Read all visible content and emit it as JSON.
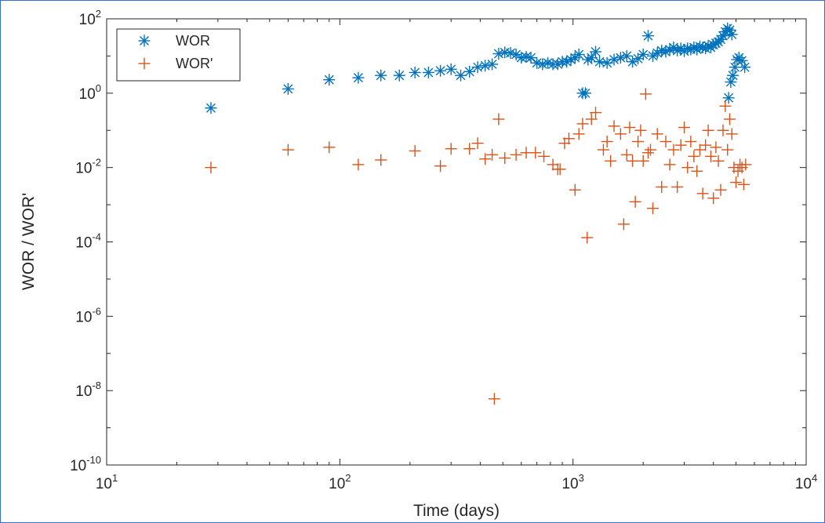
{
  "chart_data": {
    "type": "scatter",
    "title": "",
    "xlabel": "Time (days)",
    "ylabel": "WOR / WOR'",
    "xscale": "log",
    "yscale": "log",
    "xlim": [
      10,
      10000
    ],
    "ylim": [
      1e-10,
      100
    ],
    "x_ticks": [
      {
        "value": 10,
        "base": "10",
        "exp": "1"
      },
      {
        "value": 100,
        "base": "10",
        "exp": "2"
      },
      {
        "value": 1000,
        "base": "10",
        "exp": "3"
      },
      {
        "value": 10000,
        "base": "10",
        "exp": "4"
      }
    ],
    "y_ticks": [
      {
        "value": 1e-10,
        "base": "10",
        "exp": "-10"
      },
      {
        "value": 1e-08,
        "base": "10",
        "exp": "-8"
      },
      {
        "value": 1e-06,
        "base": "10",
        "exp": "-6"
      },
      {
        "value": 0.0001,
        "base": "10",
        "exp": "-4"
      },
      {
        "value": 0.01,
        "base": "10",
        "exp": "-2"
      },
      {
        "value": 1,
        "base": "10",
        "exp": "0"
      },
      {
        "value": 100,
        "base": "10",
        "exp": "2"
      }
    ],
    "grid": false,
    "legend_position": "top-left",
    "series": [
      {
        "name": "WOR",
        "marker": "asterisk",
        "color": "#0072BD",
        "points": [
          [
            28,
            0.4
          ],
          [
            60,
            1.3
          ],
          [
            90,
            2.3
          ],
          [
            120,
            2.6
          ],
          [
            150,
            3.0
          ],
          [
            180,
            3.0
          ],
          [
            210,
            3.6
          ],
          [
            240,
            3.6
          ],
          [
            270,
            4.0
          ],
          [
            300,
            4.4
          ],
          [
            330,
            3.0
          ],
          [
            360,
            3.8
          ],
          [
            390,
            5.0
          ],
          [
            420,
            5.5
          ],
          [
            450,
            6.0
          ],
          [
            480,
            11.5
          ],
          [
            510,
            12.5
          ],
          [
            540,
            12.0
          ],
          [
            570,
            11.0
          ],
          [
            600,
            9.0
          ],
          [
            630,
            9.5
          ],
          [
            660,
            9.0
          ],
          [
            700,
            6.5
          ],
          [
            740,
            6.0
          ],
          [
            780,
            6.5
          ],
          [
            820,
            6.0
          ],
          [
            860,
            6.0
          ],
          [
            900,
            7.0
          ],
          [
            940,
            7.0
          ],
          [
            980,
            8.0
          ],
          [
            1020,
            9.0
          ],
          [
            1060,
            11.0
          ],
          [
            1100,
            1.0
          ],
          [
            1130,
            1.0
          ],
          [
            1160,
            8.0
          ],
          [
            1200,
            9.0
          ],
          [
            1250,
            13.0
          ],
          [
            1300,
            7.0
          ],
          [
            1400,
            6.5
          ],
          [
            1500,
            8.0
          ],
          [
            1600,
            9.0
          ],
          [
            1700,
            10.0
          ],
          [
            1800,
            7.0
          ],
          [
            1900,
            8.5
          ],
          [
            2000,
            11.0
          ],
          [
            2100,
            35.0
          ],
          [
            2200,
            10.0
          ],
          [
            2300,
            12.0
          ],
          [
            2400,
            14.0
          ],
          [
            2500,
            13.0
          ],
          [
            2600,
            15.0
          ],
          [
            2700,
            17.0
          ],
          [
            2800,
            14.0
          ],
          [
            2900,
            16.0
          ],
          [
            3000,
            13.5
          ],
          [
            3100,
            16.0
          ],
          [
            3200,
            15.0
          ],
          [
            3300,
            17.0
          ],
          [
            3400,
            15.0
          ],
          [
            3500,
            18.0
          ],
          [
            3600,
            17.0
          ],
          [
            3700,
            16.0
          ],
          [
            3800,
            19.0
          ],
          [
            3900,
            17.0
          ],
          [
            4000,
            20.0
          ],
          [
            4100,
            22.0
          ],
          [
            4200,
            24.0
          ],
          [
            4300,
            28.0
          ],
          [
            4400,
            35.0
          ],
          [
            4500,
            45.0
          ],
          [
            4600,
            55.0
          ],
          [
            4700,
            50.0
          ],
          [
            4800,
            38.0
          ],
          [
            4650,
            0.75
          ],
          [
            4750,
            2.0
          ],
          [
            4850,
            3.0
          ],
          [
            4950,
            5.0
          ],
          [
            5050,
            8.0
          ],
          [
            5150,
            9.0
          ],
          [
            5300,
            7.5
          ],
          [
            5450,
            5.0
          ]
        ]
      },
      {
        "name": "WOR'",
        "marker": "plus",
        "color": "#D95319",
        "points": [
          [
            28,
            0.01
          ],
          [
            60,
            0.03
          ],
          [
            90,
            0.035
          ],
          [
            120,
            0.012
          ],
          [
            150,
            0.016
          ],
          [
            210,
            0.028
          ],
          [
            270,
            0.011
          ],
          [
            300,
            0.032
          ],
          [
            360,
            0.032
          ],
          [
            390,
            0.045
          ],
          [
            420,
            0.017
          ],
          [
            450,
            0.022
          ],
          [
            460,
            6e-09
          ],
          [
            480,
            0.2
          ],
          [
            510,
            0.018
          ],
          [
            570,
            0.022
          ],
          [
            630,
            0.025
          ],
          [
            690,
            0.025
          ],
          [
            750,
            0.02
          ],
          [
            820,
            0.012
          ],
          [
            860,
            0.009
          ],
          [
            880,
            0.009
          ],
          [
            920,
            0.045
          ],
          [
            960,
            0.06
          ],
          [
            1020,
            0.0025
          ],
          [
            1060,
            0.08
          ],
          [
            1100,
            0.15
          ],
          [
            1150,
            0.00013
          ],
          [
            1200,
            0.2
          ],
          [
            1250,
            0.3
          ],
          [
            1350,
            0.03
          ],
          [
            1400,
            0.05
          ],
          [
            1450,
            0.015
          ],
          [
            1500,
            0.13
          ],
          [
            1600,
            0.08
          ],
          [
            1650,
            0.0003
          ],
          [
            1700,
            0.022
          ],
          [
            1750,
            0.12
          ],
          [
            1800,
            0.015
          ],
          [
            1850,
            0.0012
          ],
          [
            1900,
            0.05
          ],
          [
            1950,
            0.1
          ],
          [
            2000,
            0.015
          ],
          [
            2050,
            0.95
          ],
          [
            2100,
            0.025
          ],
          [
            2150,
            0.03
          ],
          [
            2200,
            0.0008
          ],
          [
            2300,
            0.08
          ],
          [
            2400,
            0.003
          ],
          [
            2500,
            0.05
          ],
          [
            2600,
            0.012
          ],
          [
            2700,
            0.03
          ],
          [
            2800,
            0.003
          ],
          [
            2900,
            0.04
          ],
          [
            3000,
            0.12
          ],
          [
            3100,
            0.01
          ],
          [
            3200,
            0.05
          ],
          [
            3300,
            0.02
          ],
          [
            3400,
            0.008
          ],
          [
            3500,
            0.03
          ],
          [
            3600,
            0.002
          ],
          [
            3700,
            0.04
          ],
          [
            3800,
            0.1
          ],
          [
            3900,
            0.02
          ],
          [
            4000,
            0.0015
          ],
          [
            4100,
            0.035
          ],
          [
            4200,
            0.015
          ],
          [
            4300,
            0.0025
          ],
          [
            4400,
            0.1
          ],
          [
            4500,
            0.45
          ],
          [
            4600,
            0.03
          ],
          [
            4700,
            0.2
          ],
          [
            4800,
            0.08
          ],
          [
            4900,
            0.01
          ],
          [
            5000,
            0.004
          ],
          [
            5100,
            0.008
          ],
          [
            5200,
            0.012
          ],
          [
            5300,
            0.01
          ],
          [
            5400,
            0.0035
          ],
          [
            5500,
            0.012
          ]
        ]
      }
    ]
  }
}
